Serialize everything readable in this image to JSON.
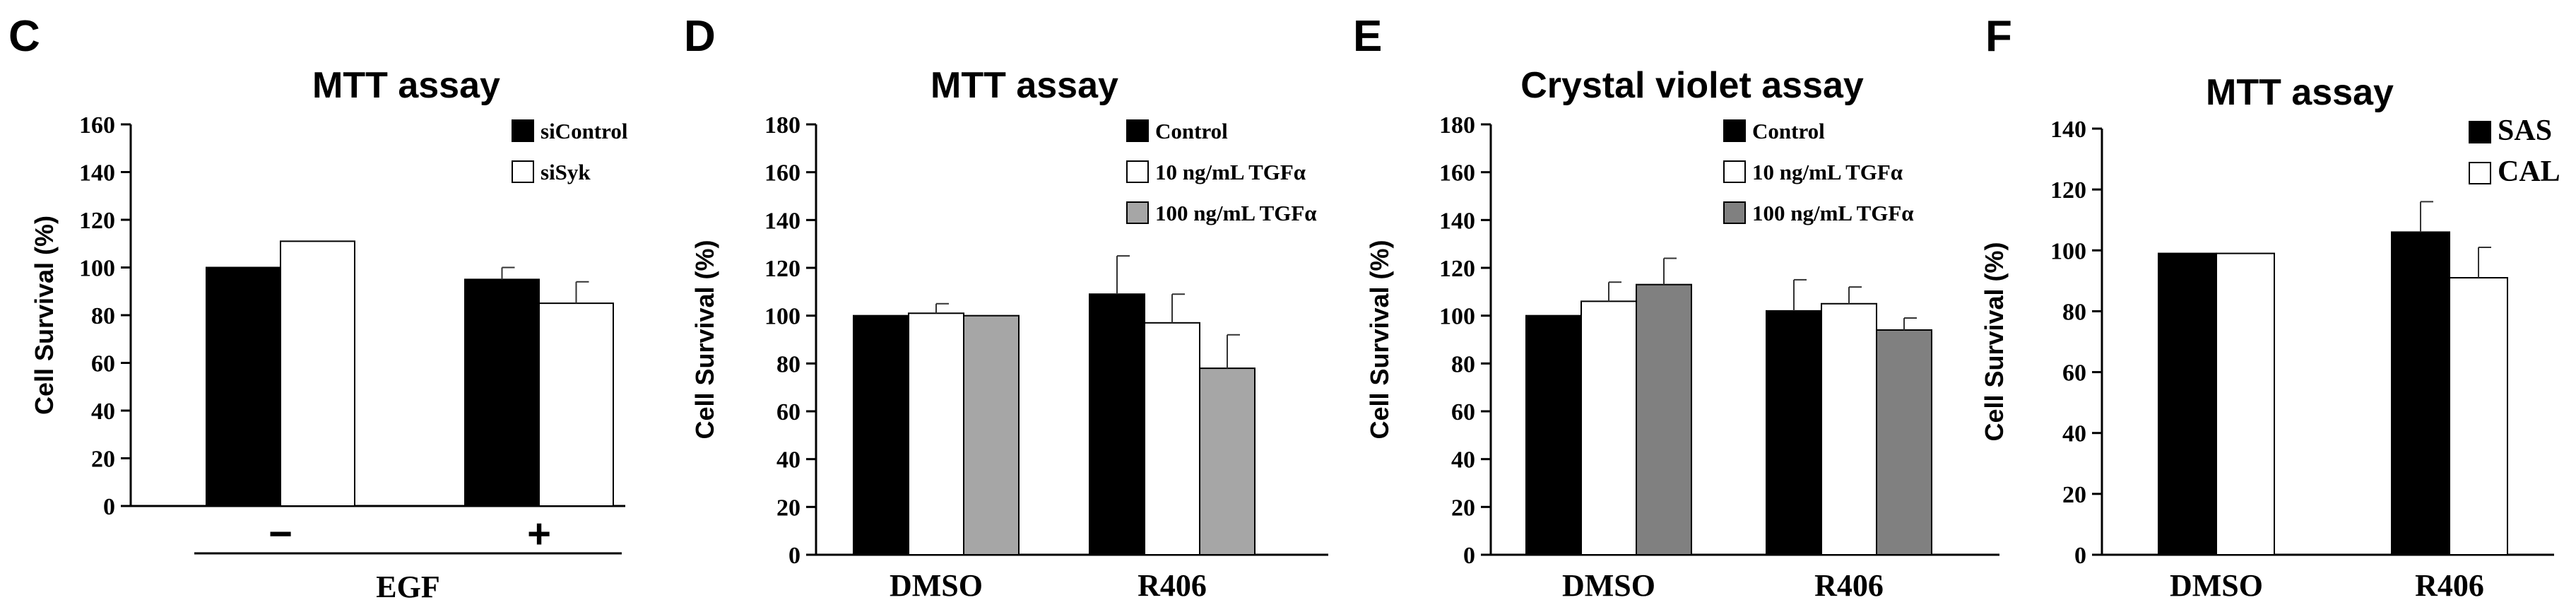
{
  "chart_data": [
    {
      "panel": "C",
      "type": "bar",
      "title": "MTT assay",
      "ylabel": "Cell Survival (%)",
      "ylim": [
        0,
        160
      ],
      "yticks": [
        "0",
        "20",
        "40",
        "60",
        "80",
        "100",
        "120",
        "140",
        "160"
      ],
      "categories": [
        "−",
        "+"
      ],
      "xlabel": "EGF",
      "series": [
        {
          "name": "siControl",
          "color": "#000000",
          "values": [
            100,
            95
          ],
          "errors": [
            0,
            5
          ]
        },
        {
          "name": "siSyk",
          "color": "#ffffff",
          "values": [
            111,
            85
          ],
          "errors": [
            0,
            9
          ]
        }
      ]
    },
    {
      "panel": "D",
      "type": "bar",
      "title": "MTT assay",
      "ylabel": "Cell Survival (%)",
      "ylim": [
        0,
        180
      ],
      "yticks": [
        "0",
        "20",
        "40",
        "60",
        "80",
        "100",
        "120",
        "140",
        "160",
        "180"
      ],
      "categories": [
        "DMSO",
        "R406"
      ],
      "xlabel": "",
      "series": [
        {
          "name": "Control",
          "color": "#000000",
          "values": [
            100,
            109
          ],
          "errors": [
            0,
            16
          ]
        },
        {
          "name": "10 ng/mL TGFα",
          "color": "#ffffff",
          "values": [
            101,
            97
          ],
          "errors": [
            4,
            12
          ]
        },
        {
          "name": "100 ng/mL TGFα",
          "color": "#a6a6a6",
          "values": [
            100,
            78
          ],
          "errors": [
            0,
            14
          ]
        }
      ]
    },
    {
      "panel": "E",
      "type": "bar",
      "title": "Crystal violet assay",
      "ylabel": "Cell Survival (%)",
      "ylim": [
        0,
        180
      ],
      "yticks": [
        "0",
        "20",
        "40",
        "60",
        "80",
        "100",
        "120",
        "140",
        "160",
        "180"
      ],
      "categories": [
        "DMSO",
        "R406"
      ],
      "xlabel": "",
      "series": [
        {
          "name": "Control",
          "color": "#000000",
          "values": [
            100,
            102
          ],
          "errors": [
            0,
            13
          ]
        },
        {
          "name": "10 ng/mL TGFα",
          "color": "#ffffff",
          "values": [
            106,
            105
          ],
          "errors": [
            8,
            7
          ]
        },
        {
          "name": "100 ng/mL TGFα",
          "color": "#808080",
          "values": [
            113,
            94
          ],
          "errors": [
            11,
            5
          ]
        }
      ]
    },
    {
      "panel": "F",
      "type": "bar",
      "title": "MTT assay",
      "ylabel": "Cell Survival (%)",
      "ylim": [
        0,
        140
      ],
      "yticks": [
        "0",
        "20",
        "40",
        "60",
        "80",
        "100",
        "120",
        "140"
      ],
      "categories": [
        "DMSO",
        "R406"
      ],
      "xlabel": "",
      "series": [
        {
          "name": "SAS",
          "color": "#000000",
          "values": [
            99,
            106
          ],
          "errors": [
            0,
            10
          ]
        },
        {
          "name": "CAL",
          "color": "#ffffff",
          "values": [
            99,
            91
          ],
          "errors": [
            0,
            10
          ]
        }
      ]
    }
  ]
}
